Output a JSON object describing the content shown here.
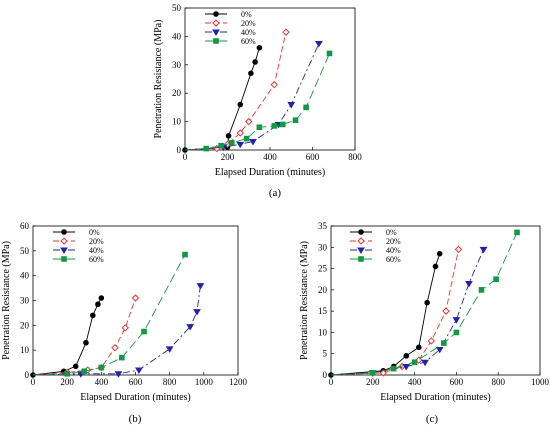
{
  "colors": {
    "0%": "#000000",
    "20%": "#ee3333",
    "40%": "#2222aa",
    "60%": "#119944"
  },
  "chart_data": [
    {
      "id": "a",
      "type": "line",
      "caption": "(a)",
      "title": "",
      "xlabel": "Elapsed Duration (minutes)",
      "ylabel": "Penetration Resistance (MPa)",
      "xlim": [
        0,
        800
      ],
      "ylim": [
        0,
        50
      ],
      "xticks": [
        0,
        200,
        400,
        600,
        800
      ],
      "yticks": [
        0,
        10,
        20,
        30,
        40,
        50
      ],
      "legend_position": "top-left",
      "series": [
        {
          "name": "0%",
          "marker": "circle-filled",
          "dash": "solid",
          "x": [
            0,
            200,
            205,
            260,
            310,
            330,
            350
          ],
          "y": [
            0,
            1,
            5,
            16,
            27,
            31,
            36
          ]
        },
        {
          "name": "20%",
          "marker": "diamond-open",
          "dash": "dash",
          "x": [
            0,
            150,
            200,
            260,
            300,
            420,
            475
          ],
          "y": [
            0,
            0.5,
            2,
            6,
            10,
            23,
            41.5
          ]
        },
        {
          "name": "40%",
          "marker": "triangle-down-filled",
          "dash": "dashdot",
          "x": [
            0,
            180,
            260,
            320,
            440,
            500,
            630
          ],
          "y": [
            0,
            1,
            2,
            3,
            9,
            16,
            37.5
          ]
        },
        {
          "name": "60%",
          "marker": "square-filled",
          "dash": "longdash",
          "x": [
            0,
            100,
            170,
            220,
            290,
            350,
            420,
            460,
            520,
            570,
            680
          ],
          "y": [
            0,
            0.5,
            1.5,
            2.5,
            4,
            8,
            8.5,
            9,
            10.5,
            15,
            34
          ]
        }
      ]
    },
    {
      "id": "b",
      "type": "line",
      "caption": "(b)",
      "title": "",
      "xlabel": "Elapsed Duration (minutes)",
      "ylabel": "Penetration Resistance (MPa)",
      "xlim": [
        0,
        1200
      ],
      "ylim": [
        0,
        60
      ],
      "xticks": [
        0,
        200,
        400,
        600,
        800,
        1000,
        1200
      ],
      "yticks": [
        0,
        10,
        20,
        30,
        40,
        50,
        60
      ],
      "legend_position": "top-left",
      "series": [
        {
          "name": "0%",
          "marker": "circle-filled",
          "dash": "solid",
          "x": [
            0,
            180,
            250,
            310,
            350,
            380,
            400
          ],
          "y": [
            0,
            1.5,
            3.5,
            13,
            24,
            28.5,
            31
          ]
        },
        {
          "name": "20%",
          "marker": "diamond-open",
          "dash": "dash",
          "x": [
            0,
            200,
            320,
            400,
            480,
            540,
            600
          ],
          "y": [
            0,
            1,
            2,
            3,
            11,
            19,
            31
          ]
        },
        {
          "name": "40%",
          "marker": "triangle-down-filled",
          "dash": "dashdot",
          "x": [
            0,
            280,
            500,
            620,
            800,
            920,
            960,
            980
          ],
          "y": [
            0,
            0.5,
            0.5,
            2,
            10.5,
            19.5,
            25.5,
            36
          ]
        },
        {
          "name": "60%",
          "marker": "square-filled",
          "dash": "longdash",
          "x": [
            0,
            200,
            300,
            400,
            520,
            650,
            890
          ],
          "y": [
            0,
            0.5,
            1.5,
            3,
            7,
            17.5,
            48.5
          ]
        }
      ]
    },
    {
      "id": "c",
      "type": "line",
      "caption": "(c)",
      "title": "",
      "xlabel": "Elapsed Duration (minutes)",
      "ylabel": "Penetration Resistance (MPa)",
      "xlim": [
        0,
        1000
      ],
      "ylim": [
        0,
        35
      ],
      "xticks": [
        0,
        200,
        400,
        600,
        800,
        1000
      ],
      "yticks": [
        0,
        5,
        10,
        15,
        20,
        25,
        30,
        35
      ],
      "legend_position": "top-left",
      "series": [
        {
          "name": "0%",
          "marker": "circle-filled",
          "dash": "solid",
          "x": [
            0,
            250,
            300,
            360,
            420,
            460,
            500,
            520
          ],
          "y": [
            0,
            1,
            2,
            4.5,
            6.5,
            17,
            25.5,
            28.5
          ]
        },
        {
          "name": "20%",
          "marker": "diamond-open",
          "dash": "dash",
          "x": [
            0,
            250,
            340,
            420,
            480,
            550,
            610
          ],
          "y": [
            0,
            0.5,
            2,
            3.5,
            8,
            15,
            29.5
          ]
        },
        {
          "name": "40%",
          "marker": "triangle-down-filled",
          "dash": "dashdot",
          "x": [
            0,
            200,
            360,
            450,
            520,
            600,
            660,
            730
          ],
          "y": [
            0,
            0.5,
            2,
            3,
            6,
            13,
            21.5,
            29.5
          ]
        },
        {
          "name": "60%",
          "marker": "square-filled",
          "dash": "longdash",
          "x": [
            0,
            200,
            300,
            400,
            540,
            600,
            720,
            790,
            890
          ],
          "y": [
            0,
            0.5,
            1.5,
            3,
            7.5,
            10,
            20,
            22.5,
            33.5
          ]
        }
      ]
    }
  ]
}
